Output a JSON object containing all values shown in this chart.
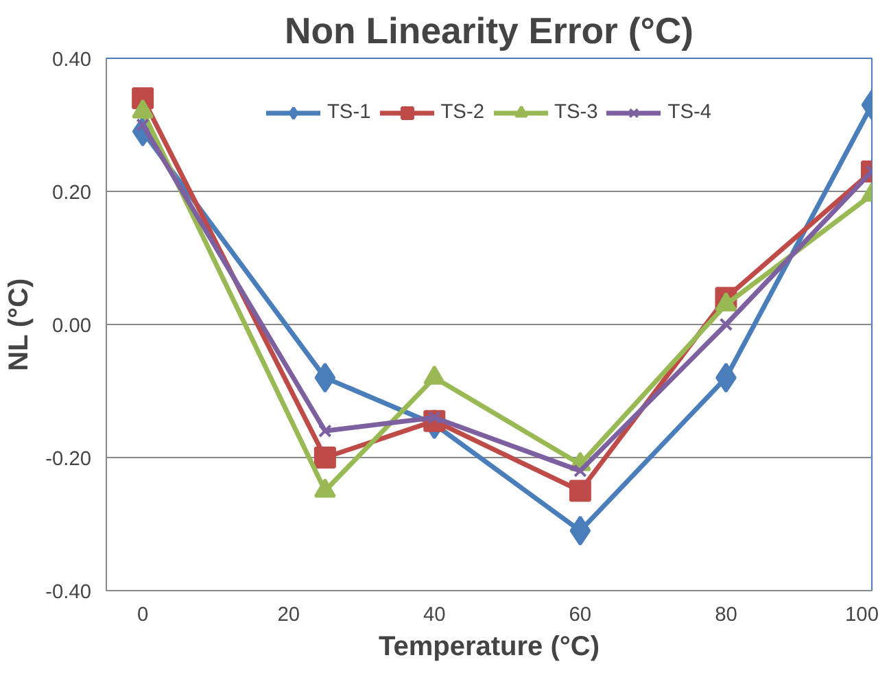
{
  "chart_data": {
    "type": "line",
    "title": "Non Linearity Error (°C)",
    "xlabel": "Temperature (°C)",
    "ylabel": "NL (°C)",
    "x": [
      0,
      25,
      40,
      60,
      80,
      100
    ],
    "series": [
      {
        "name": "TS-1",
        "color": "#4a7ebb",
        "marker": "diamond",
        "values": [
          0.29,
          -0.08,
          -0.15,
          -0.31,
          -0.08,
          0.33
        ]
      },
      {
        "name": "TS-2",
        "color": "#be4b48",
        "marker": "square",
        "values": [
          0.34,
          -0.2,
          -0.145,
          -0.25,
          0.04,
          0.23
        ]
      },
      {
        "name": "TS-3",
        "color": "#98b954",
        "marker": "triangle",
        "values": [
          0.32,
          -0.25,
          -0.08,
          -0.21,
          0.03,
          0.195
        ]
      },
      {
        "name": "TS-4",
        "color": "#7d60a0",
        "marker": "cross",
        "values": [
          0.3,
          -0.16,
          -0.14,
          -0.22,
          0.0,
          0.23
        ]
      }
    ],
    "xlim": [
      -5,
      100
    ],
    "xticks": [
      0,
      20,
      40,
      60,
      80,
      100
    ],
    "ylim": [
      -0.4,
      0.4
    ],
    "yticks": [
      {
        "value": -0.4,
        "label": "-0.40"
      },
      {
        "value": -0.2,
        "label": "-0.20"
      },
      {
        "value": 0,
        "label": "0.00"
      },
      {
        "value": 0.2,
        "label": "0.20"
      },
      {
        "value": 0.4,
        "label": "0.40"
      }
    ],
    "grid": "y",
    "legend": "top",
    "line_style": "solid"
  }
}
